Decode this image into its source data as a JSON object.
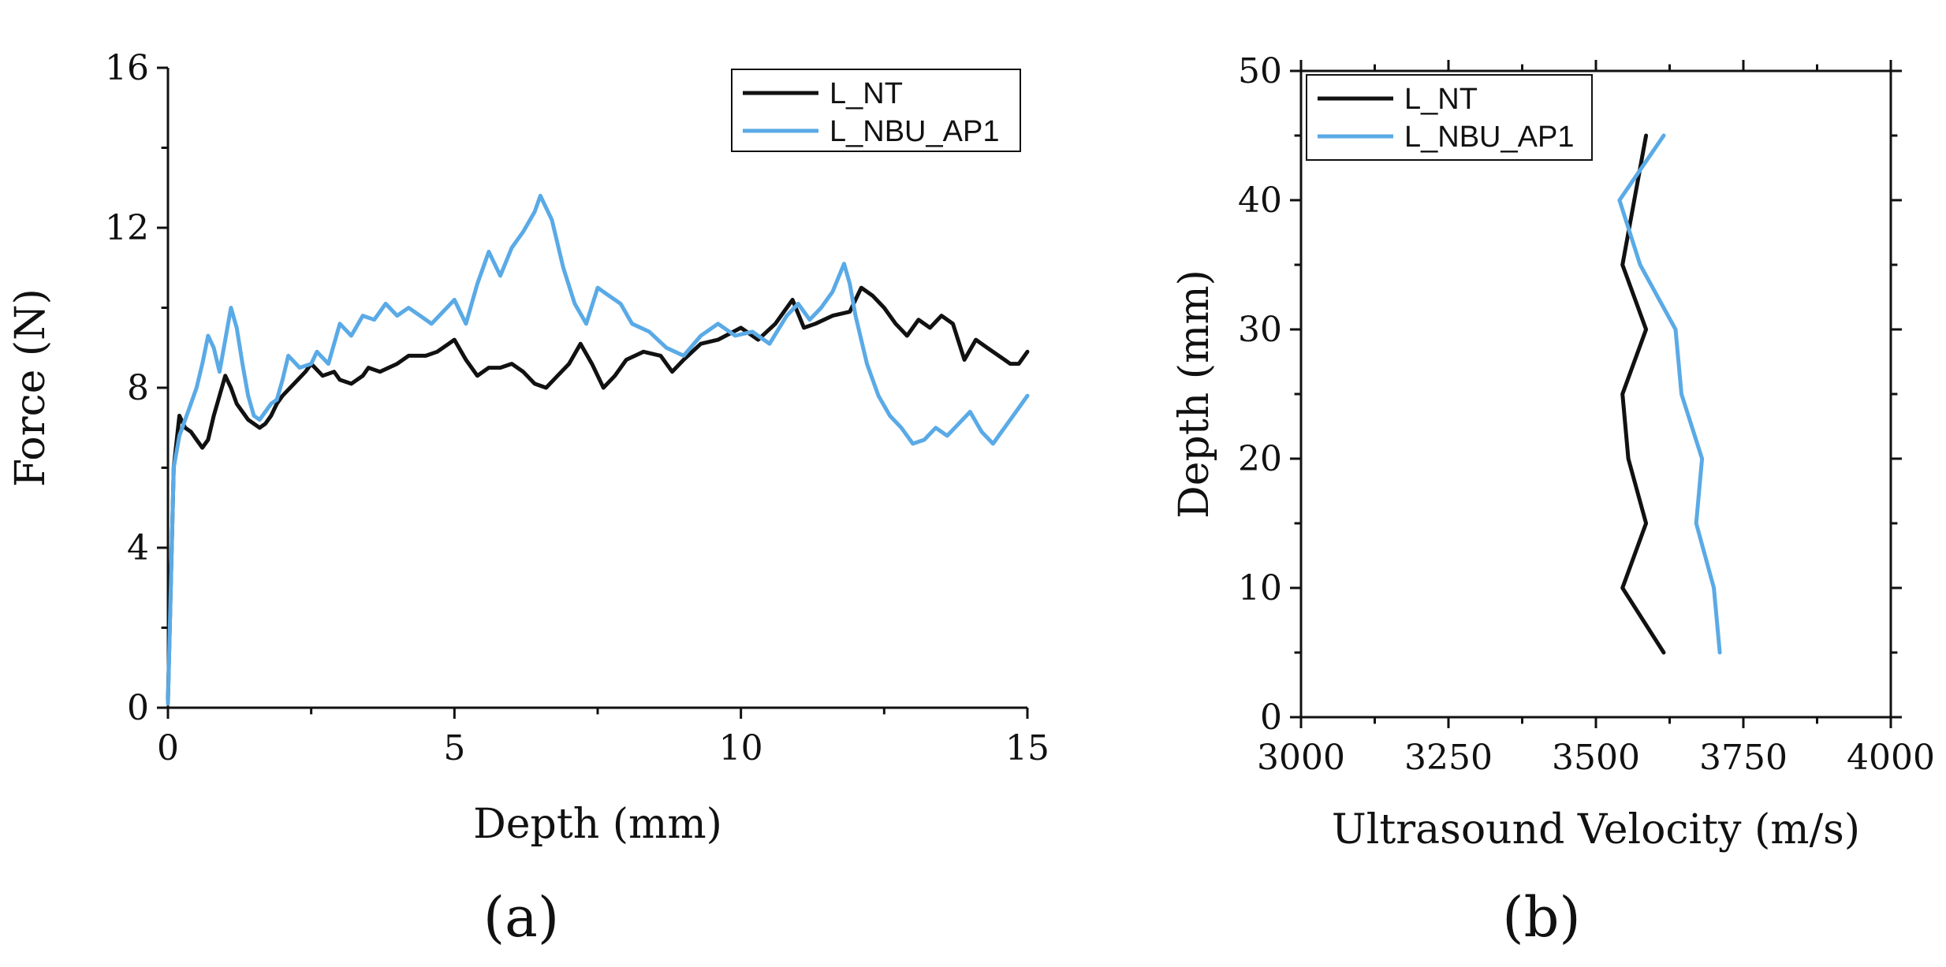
{
  "chart_data": [
    {
      "type": "line",
      "panel_label": "(a)",
      "title": "",
      "xlabel": "Depth (mm)",
      "ylabel": "Force (N)",
      "xlim": [
        0,
        15
      ],
      "ylim": [
        0,
        16
      ],
      "xticks": [
        0,
        5,
        10,
        15
      ],
      "yticks": [
        0,
        4,
        8,
        12,
        16
      ],
      "grid": false,
      "legend_position": "top-right",
      "series": [
        {
          "name": "L_NT",
          "color": "#111111",
          "x": [
            0,
            0.1,
            0.2,
            0.3,
            0.4,
            0.5,
            0.6,
            0.7,
            0.8,
            0.9,
            1.0,
            1.1,
            1.2,
            1.3,
            1.4,
            1.5,
            1.6,
            1.7,
            1.8,
            1.9,
            2.0,
            2.2,
            2.4,
            2.5,
            2.7,
            2.9,
            3.0,
            3.2,
            3.4,
            3.5,
            3.7,
            4.0,
            4.2,
            4.5,
            4.7,
            4.9,
            5.0,
            5.2,
            5.4,
            5.6,
            5.8,
            6.0,
            6.2,
            6.4,
            6.6,
            6.8,
            7.0,
            7.2,
            7.4,
            7.6,
            7.8,
            8.0,
            8.3,
            8.6,
            8.8,
            9.0,
            9.3,
            9.6,
            10.0,
            10.3,
            10.6,
            10.9,
            11.1,
            11.3,
            11.6,
            11.9,
            12.1,
            12.3,
            12.5,
            12.7,
            12.9,
            13.1,
            13.3,
            13.5,
            13.7,
            13.9,
            14.1,
            14.3,
            14.5,
            14.7,
            14.85,
            15.0
          ],
          "values": [
            0.2,
            6.0,
            7.3,
            7.0,
            6.9,
            6.7,
            6.5,
            6.7,
            7.3,
            7.8,
            8.3,
            8.0,
            7.6,
            7.4,
            7.2,
            7.1,
            7.0,
            7.1,
            7.3,
            7.6,
            7.8,
            8.1,
            8.4,
            8.6,
            8.3,
            8.4,
            8.2,
            8.1,
            8.3,
            8.5,
            8.4,
            8.6,
            8.8,
            8.8,
            8.9,
            9.1,
            9.2,
            8.7,
            8.3,
            8.5,
            8.5,
            8.6,
            8.4,
            8.1,
            8.0,
            8.3,
            8.6,
            9.1,
            8.6,
            8.0,
            8.3,
            8.7,
            8.9,
            8.8,
            8.4,
            8.7,
            9.1,
            9.2,
            9.5,
            9.2,
            9.6,
            10.2,
            9.5,
            9.6,
            9.8,
            9.9,
            10.5,
            10.3,
            10.0,
            9.6,
            9.3,
            9.7,
            9.5,
            9.8,
            9.6,
            8.7,
            9.2,
            9.0,
            8.8,
            8.6,
            8.6,
            8.9
          ]
        },
        {
          "name": "L_NBU_AP1",
          "color": "#5aaae6",
          "x": [
            0,
            0.1,
            0.2,
            0.3,
            0.4,
            0.5,
            0.6,
            0.7,
            0.8,
            0.9,
            1.0,
            1.1,
            1.2,
            1.3,
            1.4,
            1.5,
            1.6,
            1.7,
            1.8,
            1.9,
            2.0,
            2.1,
            2.3,
            2.5,
            2.6,
            2.8,
            3.0,
            3.2,
            3.4,
            3.6,
            3.8,
            4.0,
            4.2,
            4.4,
            4.6,
            4.8,
            5.0,
            5.2,
            5.4,
            5.6,
            5.8,
            6.0,
            6.2,
            6.4,
            6.5,
            6.7,
            6.9,
            7.1,
            7.3,
            7.5,
            7.7,
            7.9,
            8.1,
            8.4,
            8.7,
            9.0,
            9.3,
            9.6,
            9.9,
            10.2,
            10.5,
            10.8,
            11.0,
            11.2,
            11.4,
            11.6,
            11.8,
            11.9,
            12.0,
            12.2,
            12.4,
            12.6,
            12.8,
            13.0,
            13.2,
            13.4,
            13.6,
            13.8,
            14.0,
            14.2,
            14.4,
            14.6,
            14.8,
            15.0
          ],
          "values": [
            0.1,
            6.0,
            6.8,
            7.2,
            7.6,
            8.0,
            8.6,
            9.3,
            9.0,
            8.4,
            9.2,
            10.0,
            9.5,
            8.6,
            7.8,
            7.3,
            7.2,
            7.4,
            7.6,
            7.7,
            8.2,
            8.8,
            8.5,
            8.6,
            8.9,
            8.6,
            9.6,
            9.3,
            9.8,
            9.7,
            10.1,
            9.8,
            10.0,
            9.8,
            9.6,
            9.9,
            10.2,
            9.6,
            10.6,
            11.4,
            10.8,
            11.5,
            11.9,
            12.4,
            12.8,
            12.2,
            11.0,
            10.1,
            9.6,
            10.5,
            10.3,
            10.1,
            9.6,
            9.4,
            9.0,
            8.8,
            9.3,
            9.6,
            9.3,
            9.4,
            9.1,
            9.8,
            10.1,
            9.7,
            10.0,
            10.4,
            11.1,
            10.6,
            9.8,
            8.6,
            7.8,
            7.3,
            7.0,
            6.6,
            6.7,
            7.0,
            6.8,
            7.1,
            7.4,
            6.9,
            6.6,
            7.0,
            7.4,
            7.8
          ]
        }
      ]
    },
    {
      "type": "line",
      "panel_label": "(b)",
      "title": "",
      "xlabel": "Ultrasound Velocity (m/s)",
      "ylabel": "Depth (mm)",
      "xlim": [
        3000,
        4000
      ],
      "ylim": [
        0,
        50
      ],
      "xticks": [
        3000,
        3250,
        3500,
        3750,
        4000
      ],
      "yticks": [
        0,
        10,
        20,
        30,
        40,
        50
      ],
      "grid": false,
      "legend_position": "top-left",
      "series": [
        {
          "name": "L_NT",
          "color": "#111111",
          "x": [
            3615,
            3545,
            3585,
            3555,
            3545,
            3585,
            3545,
            3585
          ],
          "values": [
            5,
            10,
            15,
            20,
            25,
            30,
            35,
            45
          ]
        },
        {
          "name": "L_NBU_AP1",
          "color": "#5aaae6",
          "x": [
            3710,
            3700,
            3670,
            3680,
            3645,
            3635,
            3575,
            3540,
            3615
          ],
          "values": [
            5,
            10,
            15,
            20,
            25,
            30,
            35,
            40,
            45
          ]
        }
      ]
    }
  ]
}
